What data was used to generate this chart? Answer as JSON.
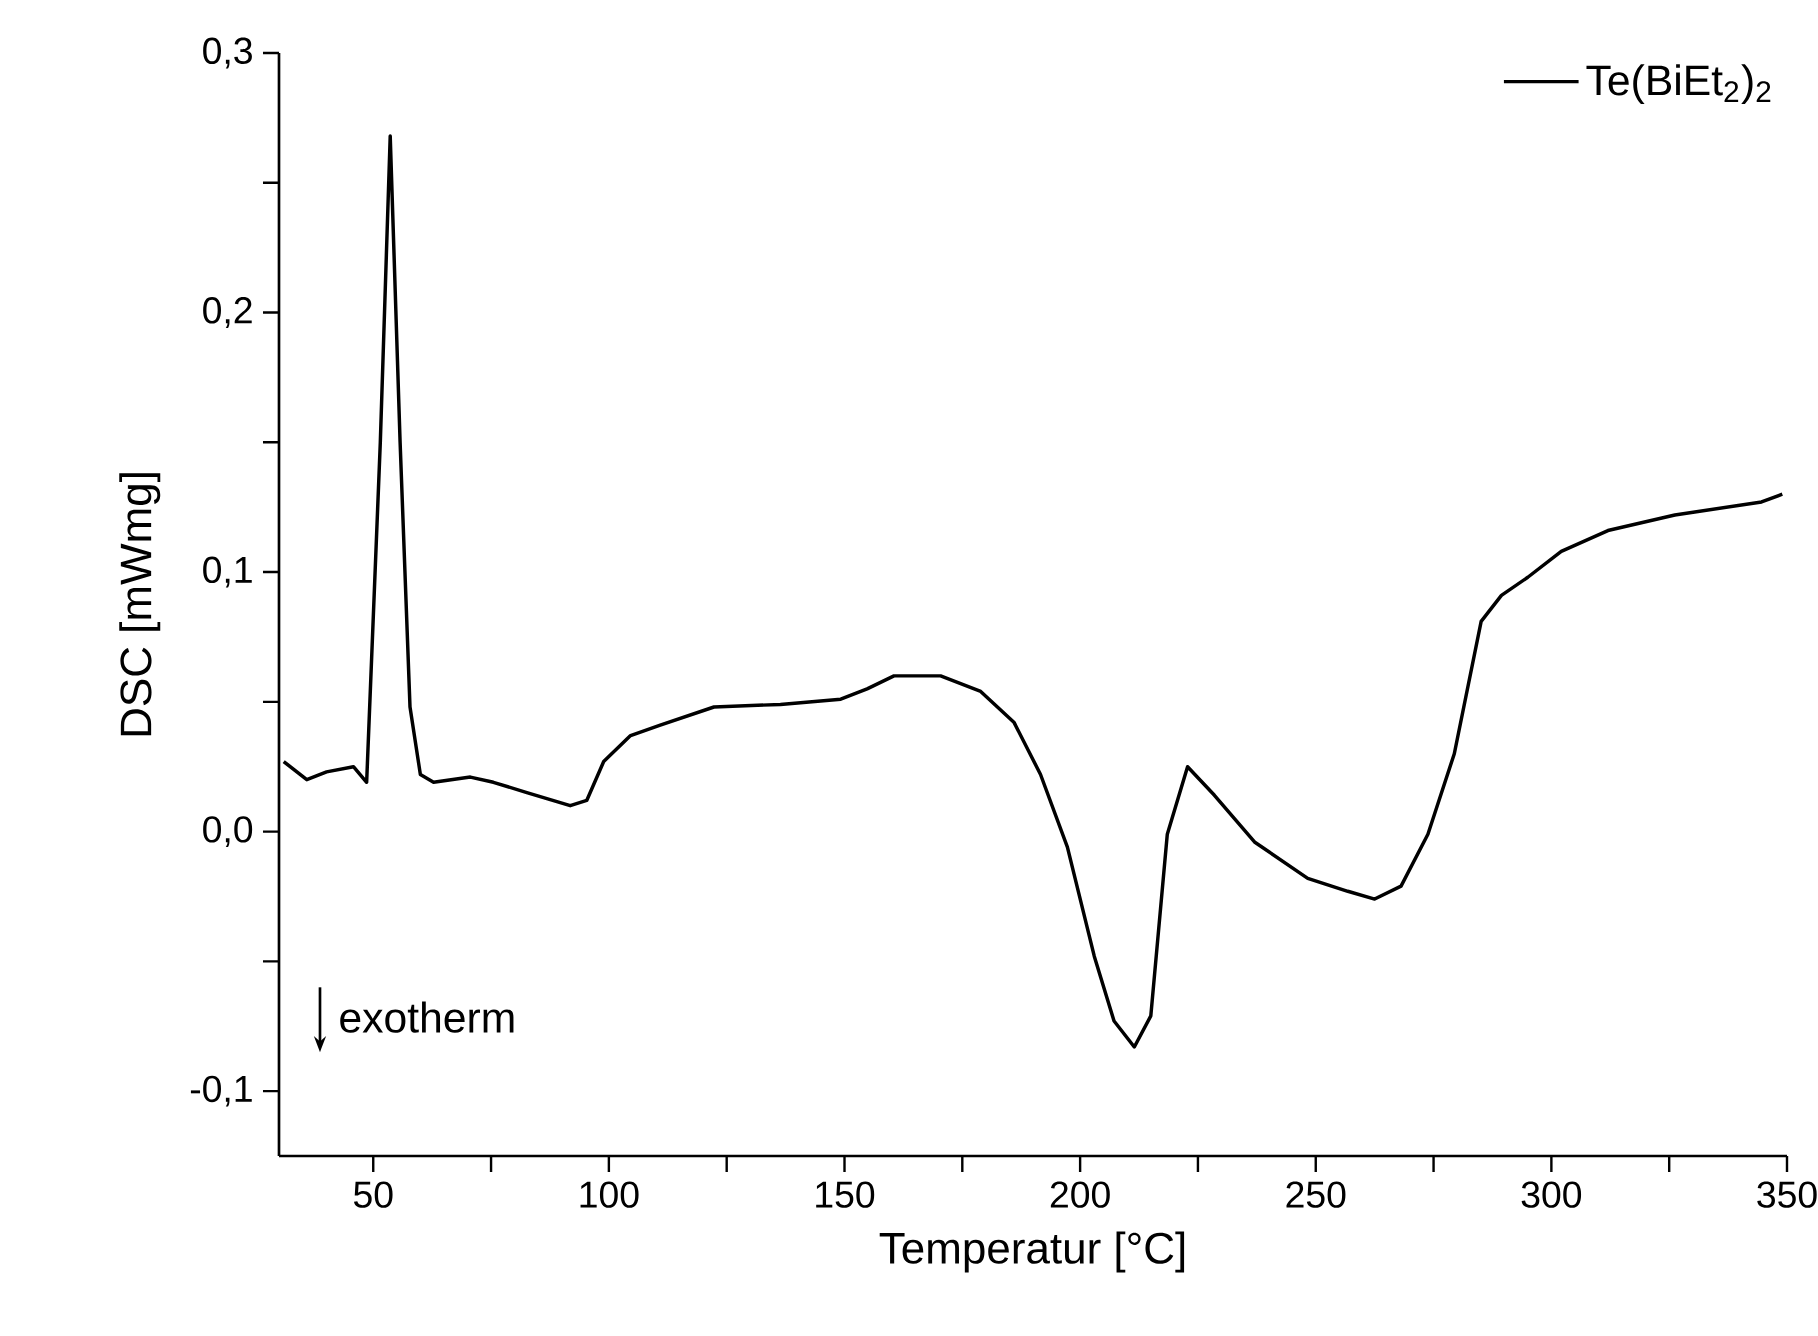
{
  "chart_data": {
    "type": "line",
    "xlabel": "Temperatur [°C]",
    "ylabel": "DSC [mWmg]",
    "annotations": [
      "exotherm"
    ],
    "xlim": [
      30,
      350
    ],
    "ylim": [
      -0.125,
      0.3
    ],
    "xticks": [
      50,
      {
        "value": 75,
        "label": null
      },
      100,
      {
        "value": 125,
        "label": null
      },
      150,
      {
        "value": 175,
        "label": null
      },
      200,
      {
        "value": 225,
        "label": null
      },
      250,
      {
        "value": 275,
        "label": null
      },
      300,
      {
        "value": 325,
        "label": null
      },
      350
    ],
    "yticks": [
      {
        "value": -0.1,
        "label": "-0,1"
      },
      {
        "value": -0.05,
        "label": null
      },
      {
        "value": 0,
        "label": "0,0"
      },
      {
        "value": 0.05,
        "label": null
      },
      {
        "value": 0.1,
        "label": "0,1"
      },
      {
        "value": 0.15,
        "label": null
      },
      {
        "value": 0.2,
        "label": "0,2"
      },
      {
        "value": 0.25,
        "label": null
      },
      {
        "value": 0.3,
        "label": "0,3"
      }
    ],
    "legend": "top right",
    "grid": false,
    "marker": "none",
    "line_style": "solid",
    "series": [
      {
        "name": "Te(BiEt$_{2}$)$_{2}$",
        "color": "#000000",
        "x": [
          31,
          35.9,
          40.1,
          45.8,
          48.6,
          51.5,
          53.6,
          55.7,
          57.8,
          60,
          62.8,
          70.6,
          75.5,
          82.6,
          91.8,
          95.3,
          98.9,
          104.6,
          110.9,
          122.3,
          136.4,
          149.2,
          154.8,
          160.5,
          170.4,
          178.9,
          186,
          191.6,
          197.3,
          203,
          207.2,
          211.5,
          215,
          218.5,
          222.8,
          228.5,
          237,
          248.3,
          256.8,
          262.5,
          268.1,
          273.8,
          279.4,
          285.1,
          289.4,
          295,
          302.1,
          312,
          326.2,
          344.6,
          349
        ],
        "values": [
          0.027,
          0.02,
          0.023,
          0.025,
          0.019,
          0.15,
          0.268,
          0.15,
          0.048,
          0.022,
          0.019,
          0.021,
          0.019,
          0.015,
          0.01,
          0.012,
          0.027,
          0.037,
          0.041,
          0.048,
          0.049,
          0.051,
          0.055,
          0.06,
          0.06,
          0.054,
          0.042,
          0.022,
          -0.006,
          -0.048,
          -0.073,
          -0.083,
          -0.071,
          -0.001,
          0.025,
          0.014,
          -0.004,
          -0.018,
          -0.023,
          -0.026,
          -0.021,
          -0.001,
          0.03,
          0.081,
          0.091,
          0.098,
          0.108,
          0.116,
          0.122,
          0.127,
          0.13
        ]
      }
    ]
  }
}
